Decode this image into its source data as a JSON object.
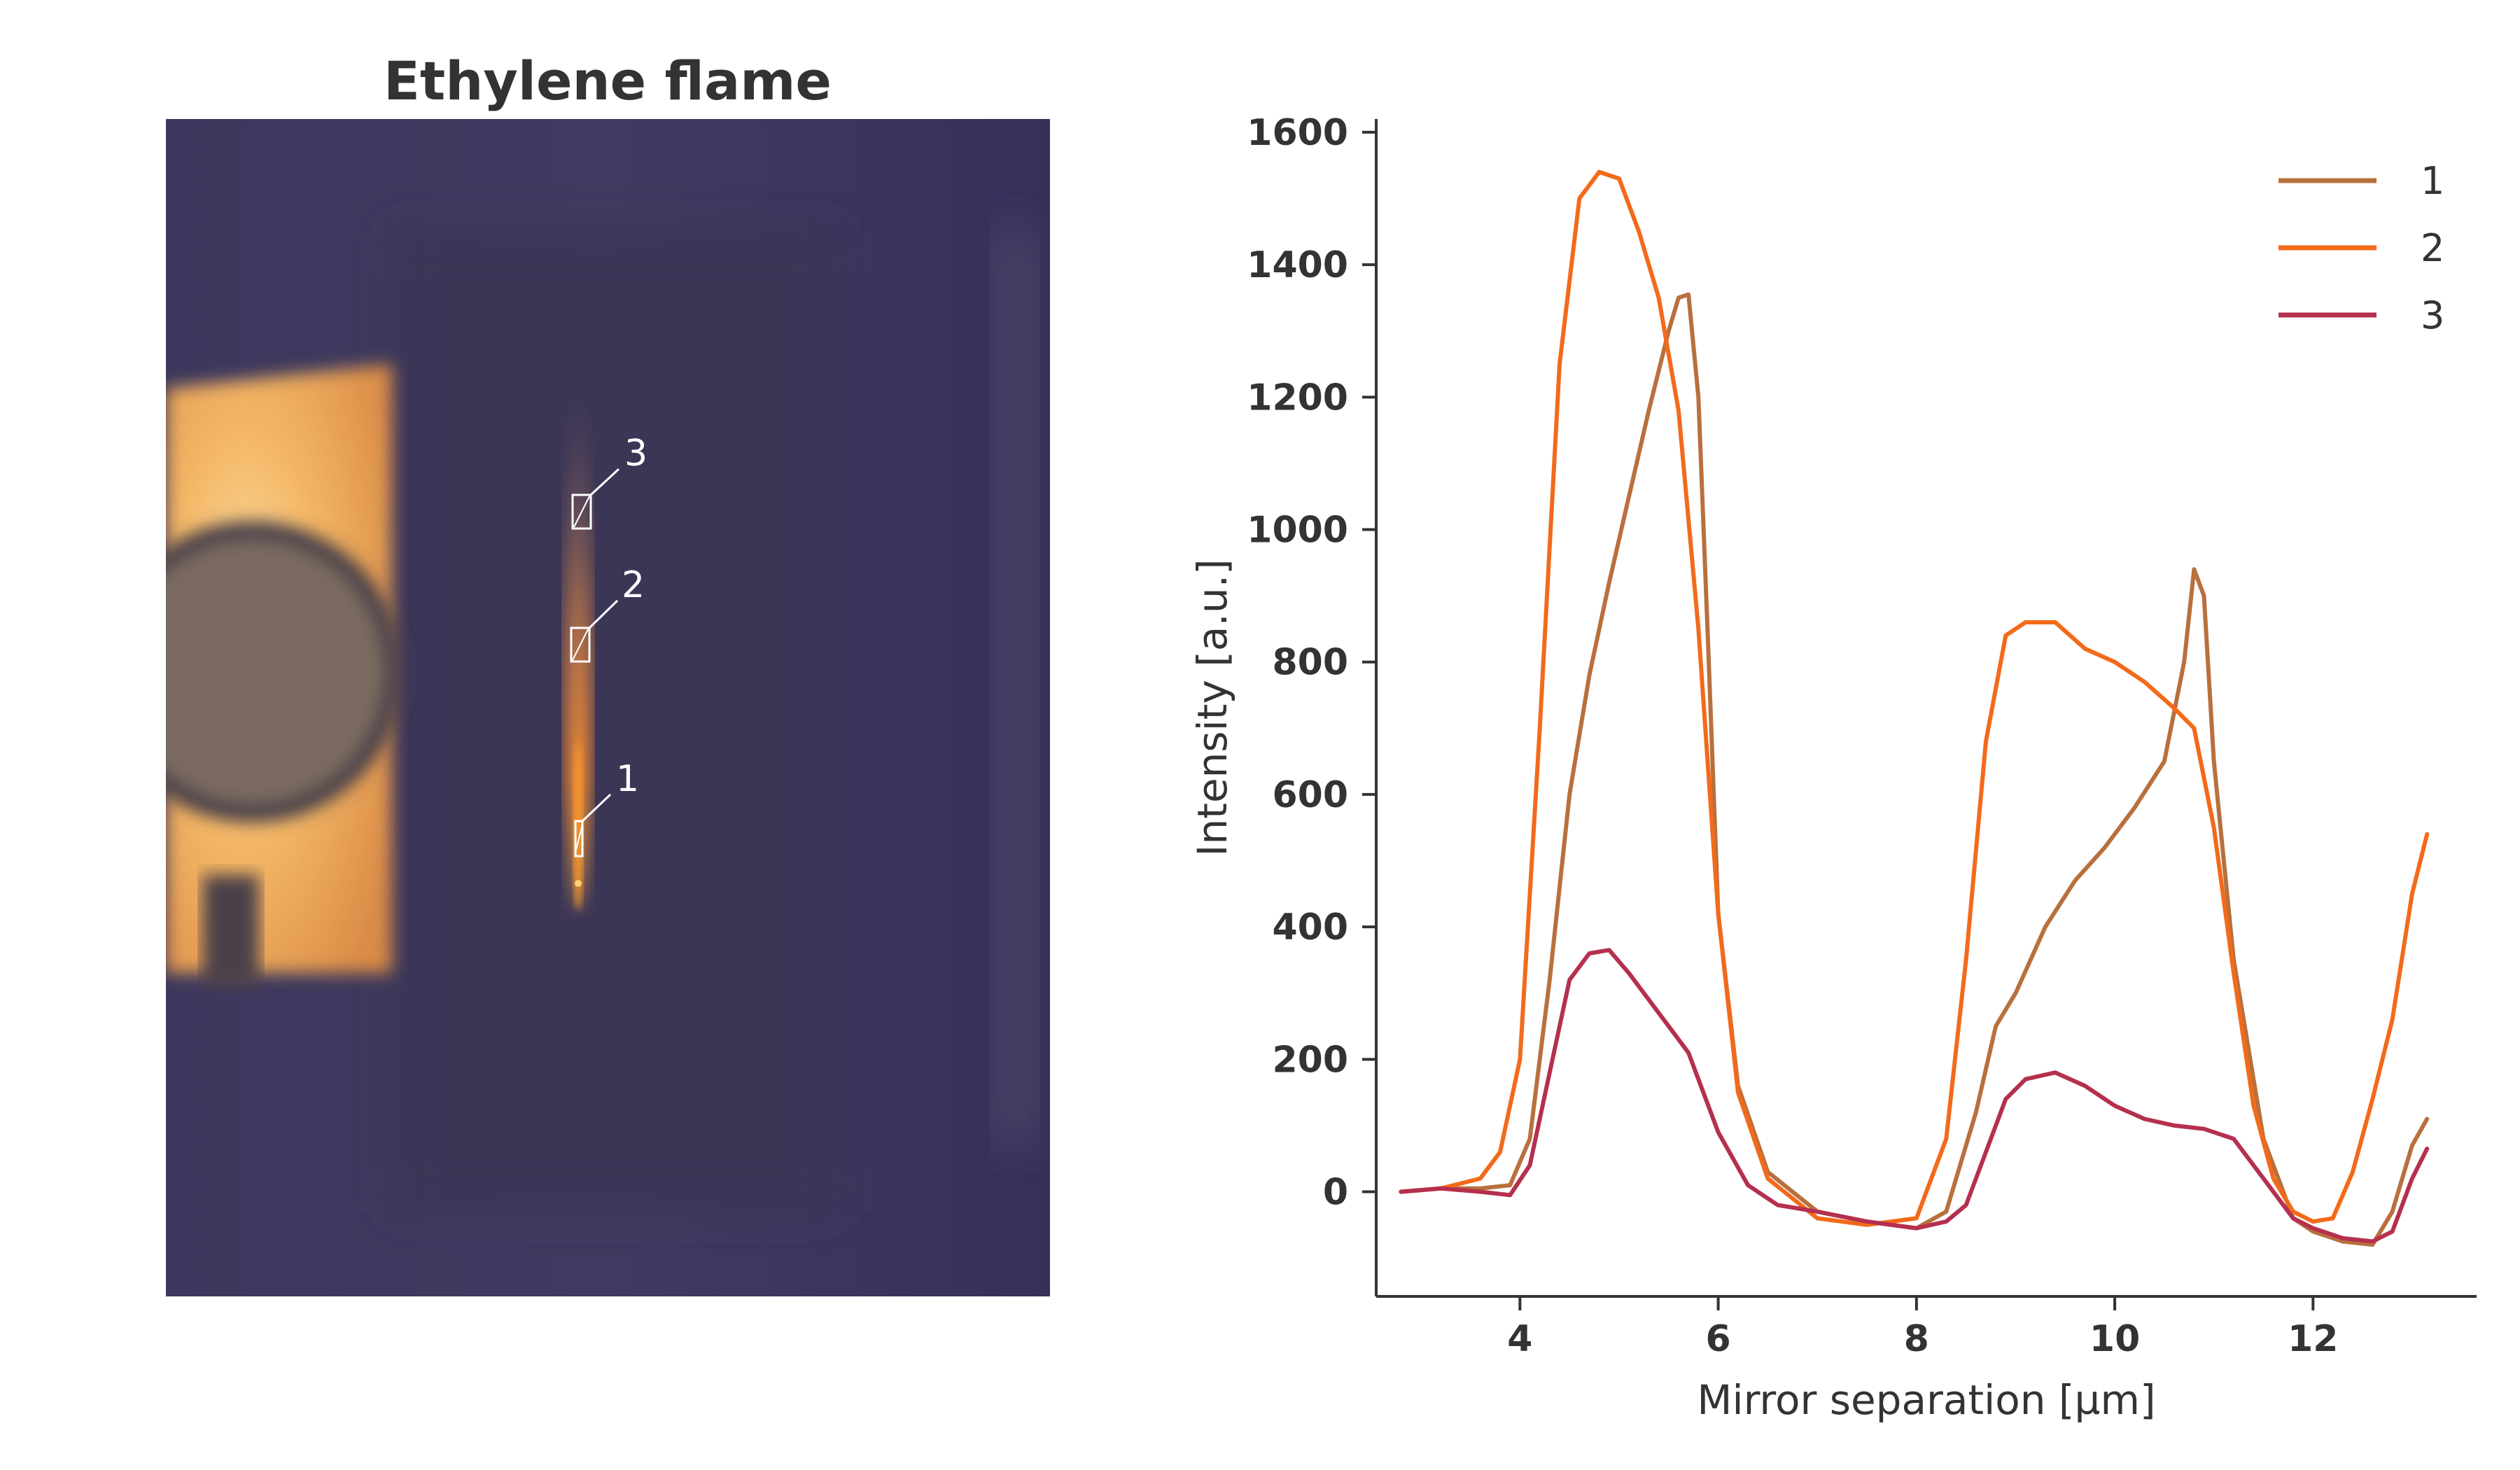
{
  "image_panel": {
    "title": "Ethylene flame",
    "markers": [
      {
        "label": "1"
      },
      {
        "label": "2"
      },
      {
        "label": "3"
      }
    ]
  },
  "chart_data": {
    "type": "line",
    "title": "",
    "xlabel": "Mirror separation [µm]",
    "ylabel": "Intensity [a.u.]",
    "xlim": [
      2.55,
      13.65
    ],
    "ylim": [
      -158,
      1620
    ],
    "xticks": [
      4,
      6,
      8,
      10,
      12
    ],
    "yticks": [
      0,
      200,
      400,
      600,
      800,
      1000,
      1200,
      1400,
      1600
    ],
    "grid": false,
    "legend_position": "top-right",
    "series": [
      {
        "name": "1",
        "color": "#b8703d",
        "x": [
          2.8,
          3.2,
          3.6,
          3.9,
          4.1,
          4.3,
          4.5,
          4.7,
          4.9,
          5.1,
          5.3,
          5.5,
          5.6,
          5.7,
          5.8,
          5.9,
          6.0,
          6.2,
          6.5,
          7.0,
          7.5,
          8.0,
          8.3,
          8.6,
          8.8,
          9.0,
          9.3,
          9.6,
          9.9,
          10.2,
          10.5,
          10.7,
          10.8,
          10.9,
          11.0,
          11.2,
          11.5,
          11.8,
          12.0,
          12.3,
          12.6,
          12.8,
          13.0,
          13.15
        ],
        "y": [
          0,
          5,
          5,
          10,
          80,
          320,
          600,
          780,
          920,
          1050,
          1180,
          1300,
          1350,
          1355,
          1200,
          820,
          420,
          160,
          30,
          -30,
          -45,
          -55,
          -30,
          120,
          250,
          300,
          400,
          470,
          520,
          580,
          650,
          800,
          940,
          900,
          650,
          350,
          80,
          -40,
          -60,
          -75,
          -80,
          -30,
          70,
          110
        ]
      },
      {
        "name": "2",
        "color": "#f26a1a",
        "x": [
          2.8,
          3.2,
          3.6,
          3.8,
          4.0,
          4.2,
          4.4,
          4.6,
          4.8,
          5.0,
          5.2,
          5.4,
          5.6,
          5.8,
          6.0,
          6.2,
          6.5,
          7.0,
          7.5,
          8.0,
          8.3,
          8.5,
          8.7,
          8.9,
          9.1,
          9.4,
          9.7,
          10.0,
          10.3,
          10.6,
          10.8,
          11.0,
          11.2,
          11.4,
          11.6,
          11.8,
          12.0,
          12.2,
          12.4,
          12.6,
          12.8,
          13.0,
          13.15
        ],
        "y": [
          0,
          5,
          20,
          60,
          200,
          700,
          1250,
          1500,
          1540,
          1530,
          1450,
          1350,
          1180,
          850,
          420,
          150,
          20,
          -40,
          -50,
          -40,
          80,
          350,
          680,
          840,
          860,
          860,
          820,
          800,
          770,
          730,
          700,
          550,
          330,
          130,
          20,
          -30,
          -45,
          -40,
          30,
          140,
          260,
          450,
          540
        ]
      },
      {
        "name": "3",
        "color": "#b5304e",
        "x": [
          2.8,
          3.2,
          3.6,
          3.9,
          4.1,
          4.3,
          4.5,
          4.7,
          4.9,
          5.1,
          5.4,
          5.7,
          6.0,
          6.3,
          6.6,
          7.0,
          7.5,
          8.0,
          8.3,
          8.5,
          8.7,
          8.9,
          9.1,
          9.4,
          9.7,
          10.0,
          10.3,
          10.6,
          10.9,
          11.2,
          11.5,
          11.8,
          12.0,
          12.3,
          12.6,
          12.8,
          13.0,
          13.15
        ],
        "y": [
          0,
          5,
          0,
          -5,
          40,
          180,
          320,
          360,
          365,
          330,
          270,
          210,
          90,
          10,
          -20,
          -30,
          -45,
          -55,
          -45,
          -20,
          60,
          140,
          170,
          180,
          160,
          130,
          110,
          100,
          95,
          80,
          20,
          -40,
          -55,
          -70,
          -75,
          -60,
          20,
          65
        ]
      }
    ]
  }
}
